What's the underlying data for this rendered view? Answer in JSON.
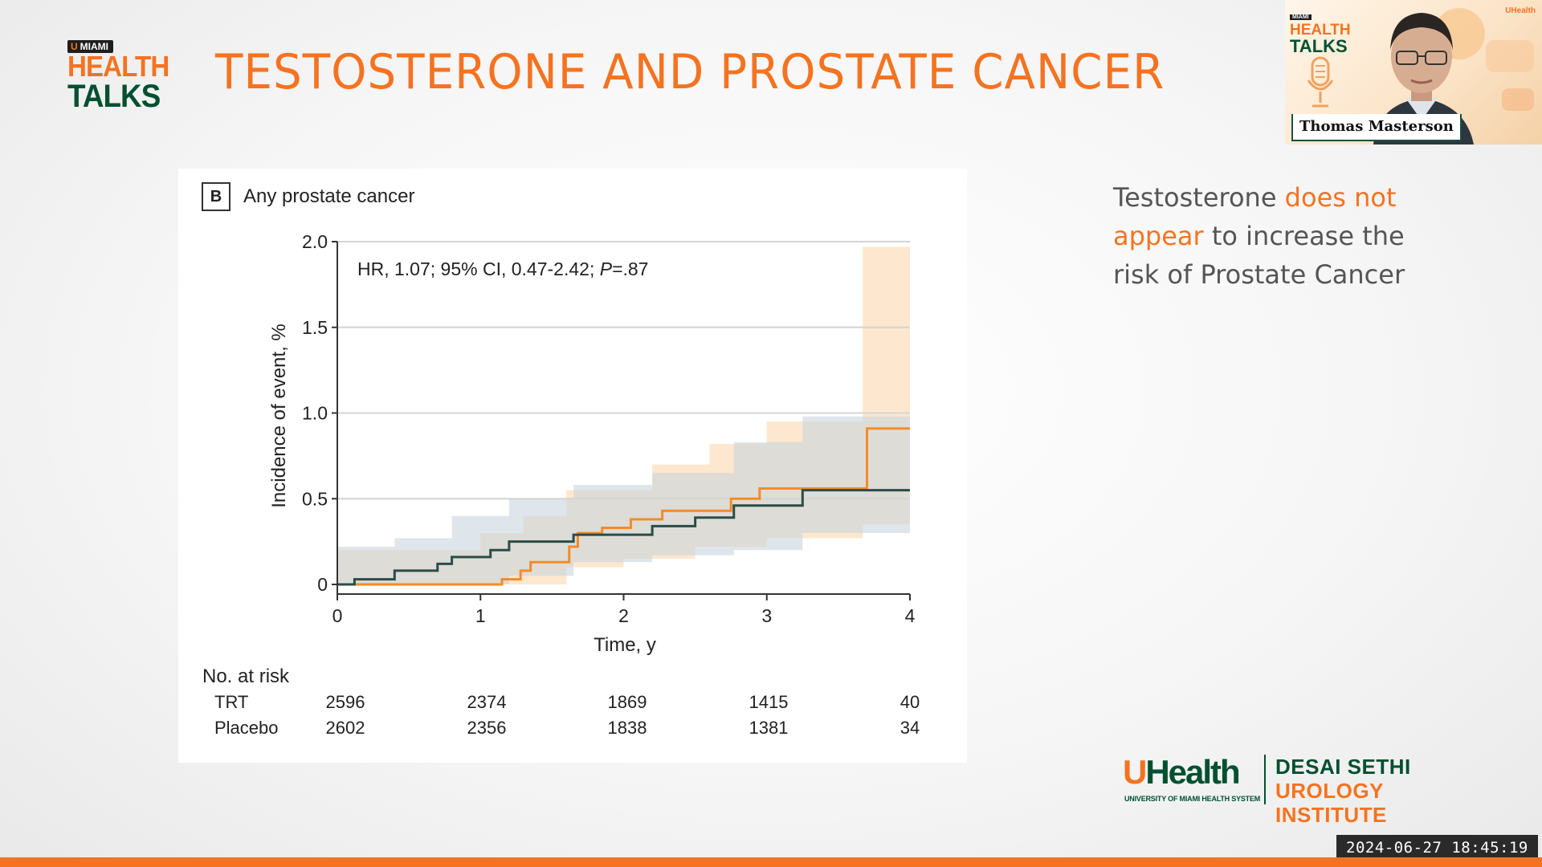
{
  "logo": {
    "badge": "MIAMI",
    "line1": "HEALTH",
    "line2": "TALKS"
  },
  "slide": {
    "title": "TESTOSTERONE AND PROSTATE CANCER"
  },
  "webcam": {
    "speaker_name": "Thomas Masterson",
    "mini_logo": {
      "badge": "MIAMI",
      "line1": "HEALTH",
      "line2": "TALKS"
    },
    "uhealth_mark": "UHealth"
  },
  "figure": {
    "panel_label": "B",
    "panel_title": "Any prostate cancer",
    "risk_table": {
      "title": "No. at risk",
      "rows": [
        {
          "label": "TRT",
          "values": [
            "2596",
            "2374",
            "1869",
            "1415",
            "40"
          ]
        },
        {
          "label": "Placebo",
          "values": [
            "2602",
            "2356",
            "1838",
            "1381",
            "34"
          ]
        }
      ]
    }
  },
  "chart_data": {
    "type": "line",
    "subtype": "kaplan-meier step curve with confidence bands",
    "annotation": "HR, 1.07; 95% CI, 0.47-2.42; P=.87",
    "xlabel": "Time, y",
    "ylabel": "Incidence of event, %",
    "xlim": [
      0,
      4
    ],
    "ylim": [
      0,
      2.0
    ],
    "x_ticks": [
      "0",
      "1",
      "2",
      "3",
      "4"
    ],
    "y_ticks": [
      "0",
      "0.5",
      "1.0",
      "1.5",
      "2.0"
    ],
    "grid": "horizontal",
    "series": [
      {
        "color": "#f28c28",
        "band_color": "#fbd7ae",
        "steps": [
          [
            0,
            0
          ],
          [
            1.15,
            0
          ],
          [
            1.15,
            0.03
          ],
          [
            1.28,
            0.03
          ],
          [
            1.28,
            0.08
          ],
          [
            1.35,
            0.08
          ],
          [
            1.35,
            0.13
          ],
          [
            1.62,
            0.13
          ],
          [
            1.62,
            0.22
          ],
          [
            1.68,
            0.22
          ],
          [
            1.68,
            0.3
          ],
          [
            1.85,
            0.3
          ],
          [
            1.85,
            0.33
          ],
          [
            2.05,
            0.33
          ],
          [
            2.05,
            0.38
          ],
          [
            2.27,
            0.38
          ],
          [
            2.27,
            0.43
          ],
          [
            2.75,
            0.43
          ],
          [
            2.75,
            0.5
          ],
          [
            2.95,
            0.5
          ],
          [
            2.95,
            0.56
          ],
          [
            3.7,
            0.56
          ],
          [
            3.7,
            0.91
          ],
          [
            4.0,
            0.91
          ]
        ],
        "ci_upper": [
          [
            0,
            0.2
          ],
          [
            1,
            0.2
          ],
          [
            1,
            0.3
          ],
          [
            1.3,
            0.3
          ],
          [
            1.3,
            0.4
          ],
          [
            1.6,
            0.4
          ],
          [
            1.6,
            0.55
          ],
          [
            2.2,
            0.55
          ],
          [
            2.2,
            0.7
          ],
          [
            2.6,
            0.7
          ],
          [
            2.6,
            0.82
          ],
          [
            3.0,
            0.82
          ],
          [
            3.0,
            0.95
          ],
          [
            3.67,
            0.95
          ],
          [
            3.67,
            1.97
          ],
          [
            4.0,
            1.97
          ]
        ],
        "ci_lower": [
          [
            0,
            0
          ],
          [
            1.6,
            0
          ],
          [
            1.6,
            0.1
          ],
          [
            2.0,
            0.1
          ],
          [
            2.0,
            0.15
          ],
          [
            2.5,
            0.15
          ],
          [
            2.5,
            0.22
          ],
          [
            3.0,
            0.22
          ],
          [
            3.0,
            0.27
          ],
          [
            3.67,
            0.27
          ],
          [
            3.67,
            0.35
          ],
          [
            4.0,
            0.35
          ]
        ]
      },
      {
        "color": "#2b4c48",
        "band_color": "#c9d6dd",
        "steps": [
          [
            0,
            0
          ],
          [
            0.12,
            0
          ],
          [
            0.12,
            0.03
          ],
          [
            0.4,
            0.03
          ],
          [
            0.4,
            0.08
          ],
          [
            0.7,
            0.08
          ],
          [
            0.7,
            0.12
          ],
          [
            0.8,
            0.12
          ],
          [
            0.8,
            0.16
          ],
          [
            1.07,
            0.16
          ],
          [
            1.07,
            0.2
          ],
          [
            1.2,
            0.2
          ],
          [
            1.2,
            0.25
          ],
          [
            1.65,
            0.25
          ],
          [
            1.65,
            0.29
          ],
          [
            2.2,
            0.29
          ],
          [
            2.2,
            0.34
          ],
          [
            2.5,
            0.34
          ],
          [
            2.5,
            0.39
          ],
          [
            2.77,
            0.39
          ],
          [
            2.77,
            0.46
          ],
          [
            3.25,
            0.46
          ],
          [
            3.25,
            0.55
          ],
          [
            4.0,
            0.55
          ]
        ],
        "ci_upper": [
          [
            0,
            0.22
          ],
          [
            0.4,
            0.22
          ],
          [
            0.4,
            0.27
          ],
          [
            0.8,
            0.27
          ],
          [
            0.8,
            0.4
          ],
          [
            1.2,
            0.4
          ],
          [
            1.2,
            0.5
          ],
          [
            1.65,
            0.5
          ],
          [
            1.65,
            0.58
          ],
          [
            2.2,
            0.58
          ],
          [
            2.2,
            0.65
          ],
          [
            2.77,
            0.65
          ],
          [
            2.77,
            0.83
          ],
          [
            3.25,
            0.83
          ],
          [
            3.25,
            0.98
          ],
          [
            4.0,
            0.98
          ]
        ],
        "ci_lower": [
          [
            0,
            0
          ],
          [
            1.2,
            0
          ],
          [
            1.2,
            0.05
          ],
          [
            1.65,
            0.05
          ],
          [
            1.65,
            0.13
          ],
          [
            2.2,
            0.13
          ],
          [
            2.2,
            0.17
          ],
          [
            2.77,
            0.17
          ],
          [
            2.77,
            0.2
          ],
          [
            3.25,
            0.2
          ],
          [
            3.25,
            0.3
          ],
          [
            4.0,
            0.3
          ]
        ]
      }
    ]
  },
  "callout": {
    "part1": "Testosterone ",
    "highlight": "does not appear",
    "part2": " to increase the risk of Prostate Cancer"
  },
  "footer": {
    "uhealth": "Health",
    "uhealth_u": "U",
    "uhealth_sub": "UNIVERSITY OF MIAMI HEALTH SYSTEM",
    "institute_line1": "DESAI SETHI",
    "institute_line2": "UROLOGY INSTITUTE"
  },
  "timestamp": "2024-06-27 18:45:19",
  "colors": {
    "brand_orange": "#f47321",
    "brand_green": "#005030"
  }
}
